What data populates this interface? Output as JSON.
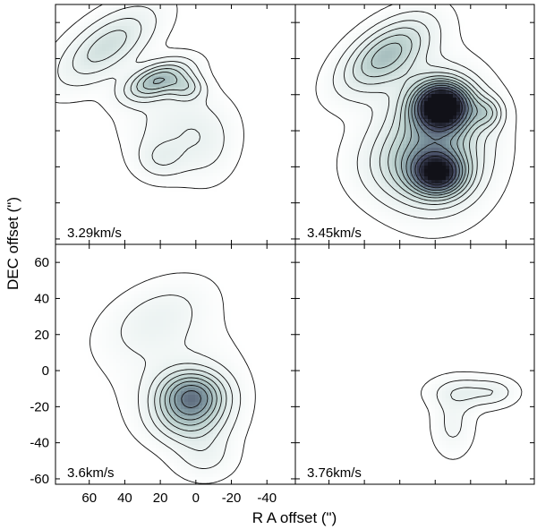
{
  "chart_data": {
    "type": "contour",
    "xlabel": "R A offset (\")",
    "ylabel": "DEC offset (\")",
    "xlim": [
      79,
      -56
    ],
    "ylim": [
      -63,
      70
    ],
    "xticks": [
      60,
      40,
      20,
      0,
      -20,
      -40
    ],
    "yticks": [
      60,
      40,
      20,
      0,
      -20,
      -40,
      -60
    ],
    "xtick_labels": [
      "60",
      "40",
      "20",
      "0",
      "-20",
      "-40"
    ],
    "ytick_labels": [
      "60",
      "40",
      "20",
      "0",
      "-20",
      "-40",
      "-60"
    ],
    "grid": false,
    "colormap": [
      "#ffffff",
      "#e6efee",
      "#b9cfcc",
      "#7f97a0",
      "#454b64",
      "#111118"
    ],
    "panels": [
      {
        "label": "3.29km/s",
        "components": [
          {
            "x": 22,
            "y": 28,
            "sx": 13,
            "sy": 6,
            "angle": -22,
            "amp": 2.4
          },
          {
            "x": 5,
            "y": 24,
            "sx": 7,
            "sy": 5,
            "angle": 0,
            "amp": 1.2
          },
          {
            "x": 50,
            "y": 47,
            "sx": 22,
            "sy": 10,
            "angle": -35,
            "amp": 1.6
          },
          {
            "x": 12,
            "y": 5,
            "sx": 20,
            "sy": 14,
            "angle": 0,
            "amp": 0.7
          },
          {
            "x": 20,
            "y": -16,
            "sx": 10,
            "sy": 8,
            "angle": 0,
            "amp": 0.8
          },
          {
            "x": -5,
            "y": -10,
            "sx": 12,
            "sy": 14,
            "angle": 0,
            "amp": 0.55
          }
        ]
      },
      {
        "label": "3.45km/s",
        "components": [
          {
            "x": -4,
            "y": 14,
            "sx": 11,
            "sy": 9,
            "angle": 0,
            "amp": 5.2
          },
          {
            "x": -2,
            "y": -24,
            "sx": 10,
            "sy": 8,
            "angle": 0,
            "amp": 3.4
          },
          {
            "x": 28,
            "y": 42,
            "sx": 20,
            "sy": 10,
            "angle": -35,
            "amp": 2.3
          },
          {
            "x": 0,
            "y": -5,
            "sx": 20,
            "sy": 24,
            "angle": 0,
            "amp": 2.2
          },
          {
            "x": -30,
            "y": 10,
            "sx": 6,
            "sy": 6,
            "angle": 0,
            "amp": 1.2
          },
          {
            "x": 15,
            "y": -20,
            "sx": 20,
            "sy": 14,
            "angle": 0,
            "amp": 1.1
          }
        ]
      },
      {
        "label": "3.6km/s",
        "components": [
          {
            "x": 2,
            "y": -13,
            "sx": 13,
            "sy": 9,
            "angle": 0,
            "amp": 2.6
          },
          {
            "x": 4,
            "y": -27,
            "sx": 15,
            "sy": 10,
            "angle": 0,
            "amp": 1.6
          },
          {
            "x": 22,
            "y": 30,
            "sx": 22,
            "sy": 12,
            "angle": -25,
            "amp": 0.7
          },
          {
            "x": -5,
            "y": -48,
            "sx": 12,
            "sy": 9,
            "angle": 0,
            "amp": 0.65
          },
          {
            "x": 10,
            "y": 0,
            "sx": 25,
            "sy": 20,
            "angle": 0,
            "amp": 0.5
          }
        ]
      },
      {
        "label": "3.76km/s",
        "components": [
          {
            "x": -18,
            "y": -12,
            "sx": 14,
            "sy": 6,
            "angle": 0,
            "amp": 0.9
          },
          {
            "x": -10,
            "y": -30,
            "sx": 8,
            "sy": 12,
            "angle": 0,
            "amp": 0.65
          },
          {
            "x": -35,
            "y": -12,
            "sx": 8,
            "sy": 5,
            "angle": 0,
            "amp": 0.45
          }
        ]
      }
    ]
  }
}
